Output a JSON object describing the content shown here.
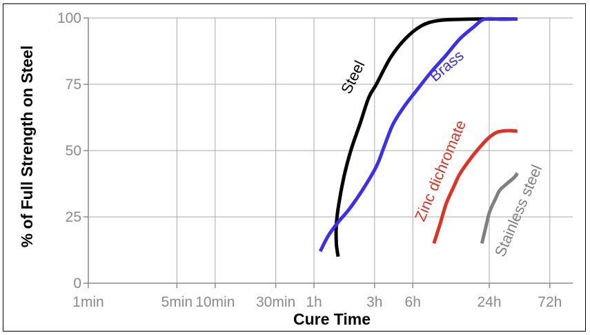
{
  "chart_data": {
    "type": "line",
    "title": "",
    "xlabel": "Cure Time",
    "ylabel": "% of Full Strength on Steel",
    "x_scale": "log",
    "x_unit": "hours",
    "x_ticks": [
      {
        "label": "1min",
        "value": 0.0167
      },
      {
        "label": "5min",
        "value": 0.0833
      },
      {
        "label": "10min",
        "value": 0.1667
      },
      {
        "label": "30min",
        "value": 0.5
      },
      {
        "label": "1h",
        "value": 1
      },
      {
        "label": "3h",
        "value": 3
      },
      {
        "label": "6h",
        "value": 6
      },
      {
        "label": "24h",
        "value": 24
      },
      {
        "label": "72h",
        "value": 72
      }
    ],
    "y_ticks": [
      {
        "label": "0",
        "value": 0
      },
      {
        "label": "25",
        "value": 25
      },
      {
        "label": "50",
        "value": 50
      },
      {
        "label": "75",
        "value": 75
      },
      {
        "label": "100",
        "value": 100
      }
    ],
    "ylim": [
      0,
      100
    ],
    "grid": true,
    "series": [
      {
        "name": "Steel",
        "color": "#000000",
        "points": [
          [
            1.55,
            10
          ],
          [
            1.5,
            15
          ],
          [
            1.5,
            22
          ],
          [
            1.57,
            30
          ],
          [
            1.72,
            40
          ],
          [
            1.95,
            50
          ],
          [
            2.3,
            60
          ],
          [
            2.7,
            70
          ],
          [
            3.1,
            75
          ],
          [
            4,
            85
          ],
          [
            5.2,
            92
          ],
          [
            7,
            97
          ],
          [
            9.5,
            99
          ],
          [
            15,
            99.5
          ],
          [
            24,
            99.6
          ],
          [
            40,
            99.6
          ]
        ]
      },
      {
        "name": "Brass",
        "color": "#3a2ff0",
        "points": [
          [
            1.12,
            12
          ],
          [
            1.3,
            18
          ],
          [
            1.55,
            23
          ],
          [
            1.9,
            28
          ],
          [
            2.4,
            35
          ],
          [
            3.1,
            44
          ],
          [
            3.6,
            52
          ],
          [
            4.2,
            60
          ],
          [
            5.2,
            67
          ],
          [
            6.5,
            73
          ],
          [
            8.5,
            80
          ],
          [
            11,
            86
          ],
          [
            14,
            92
          ],
          [
            18,
            96.5
          ],
          [
            22,
            99.5
          ],
          [
            30,
            99.5
          ],
          [
            40,
            99.6
          ]
        ]
      },
      {
        "name": "Zinc dichromate",
        "color": "#e03222",
        "points": [
          [
            8.8,
            15
          ],
          [
            9.8,
            22
          ],
          [
            11,
            30
          ],
          [
            12.5,
            36
          ],
          [
            14,
            41
          ],
          [
            16.5,
            46
          ],
          [
            20,
            51
          ],
          [
            24,
            55
          ],
          [
            28,
            57
          ],
          [
            33,
            57.5
          ],
          [
            40,
            57.3
          ]
        ]
      },
      {
        "name": "Stainless steel",
        "color": "#808080",
        "points": [
          [
            21,
            15
          ],
          [
            22.5,
            21
          ],
          [
            24.2,
            27
          ],
          [
            27,
            32
          ],
          [
            29,
            35
          ],
          [
            33,
            37.5
          ],
          [
            38,
            40
          ],
          [
            40,
            41.5
          ]
        ]
      }
    ],
    "curve_labels": [
      {
        "text": "Steel",
        "series": "Steel"
      },
      {
        "text": "Brass",
        "series": "Brass"
      },
      {
        "text": "Zinc dichromate",
        "series": "Zinc dichromate"
      },
      {
        "text": "Stainless steel",
        "series": "Stainless steel"
      }
    ]
  }
}
